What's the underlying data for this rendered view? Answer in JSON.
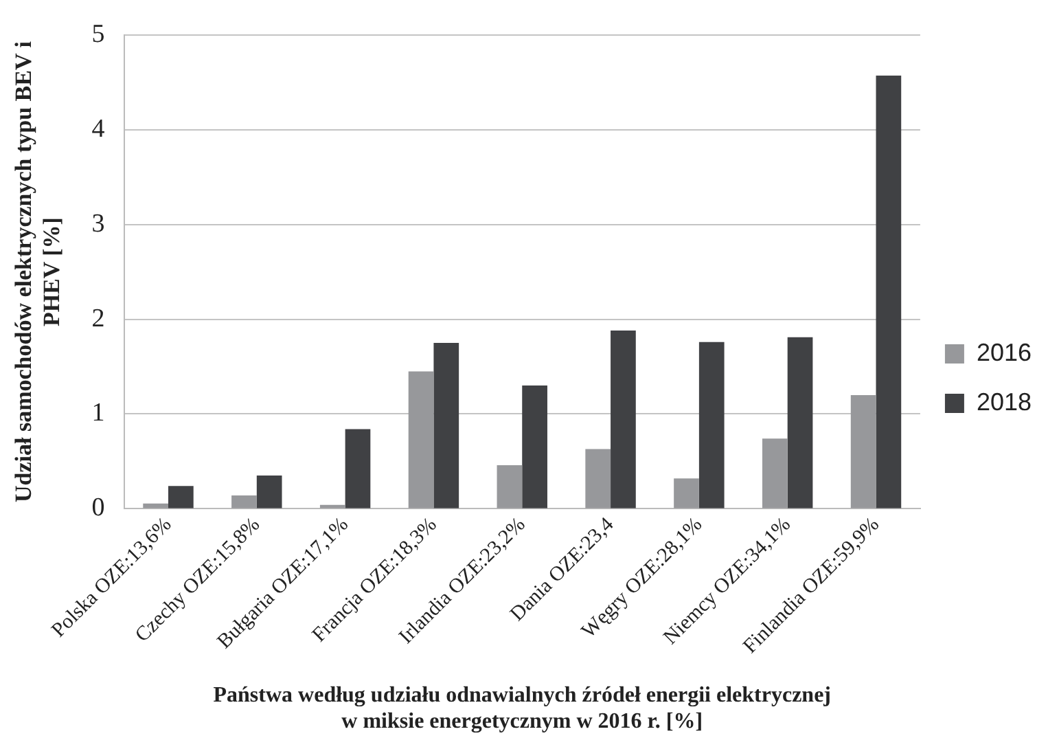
{
  "chart_data": {
    "type": "bar",
    "xlabel": "Państwa według udziału odnawialnych źródeł energii elektrycznej\nw miksie energetycznym w 2016 r. [%]",
    "ylabel": "Udział samochodów elektrycznych typu BEV i\nPHEV [%]",
    "categories": [
      "Polska OZE:13,6%",
      "Czechy OZE:15,8%",
      "Bułgaria OZE:17,1%",
      "Francja OZE:18,3%",
      "Irlandia OZE:23,2%",
      "Dania OZE:23,4",
      "Węgry OZE:28,1%",
      "Niemcy OZE:34,1%",
      "Finlandia OZE:59,9%"
    ],
    "series": [
      {
        "name": "2016",
        "color": "#97989b",
        "values": [
          0.055,
          0.14,
          0.04,
          1.45,
          0.46,
          0.63,
          0.32,
          0.74,
          1.2
        ]
      },
      {
        "name": "2018",
        "color": "#404144",
        "values": [
          0.24,
          0.35,
          0.84,
          1.75,
          1.3,
          1.88,
          1.76,
          1.81,
          4.57
        ]
      }
    ],
    "ylim": [
      0,
      5
    ],
    "yticks": [
      0,
      1,
      2,
      3,
      4,
      5
    ],
    "grid": "y",
    "legend": "right"
  }
}
